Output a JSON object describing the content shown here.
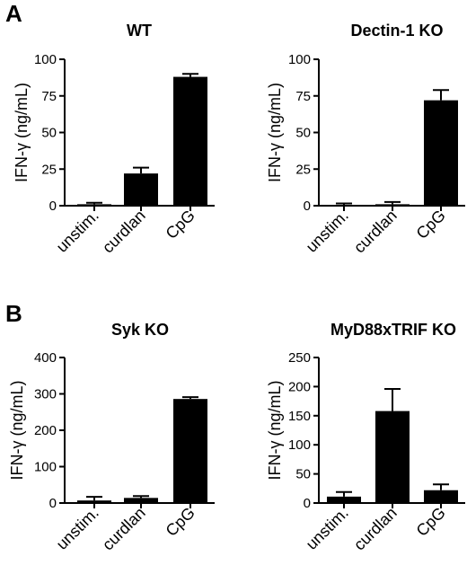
{
  "figure": {
    "panel_labels": [
      "A",
      "B"
    ]
  },
  "chart_data": [
    {
      "type": "bar",
      "title": "WT",
      "ylabel": "IFN-γ (ng/mL)",
      "categories": [
        "unstim.",
        "curdlan",
        "CpG"
      ],
      "values": [
        1,
        22,
        88
      ],
      "errors": [
        1,
        4,
        2
      ],
      "ylim": [
        0,
        100
      ],
      "yticks": [
        "0",
        "25",
        "50",
        "75",
        "100"
      ],
      "bar_color": "#000000"
    },
    {
      "type": "bar",
      "title": "Dectin-1 KO",
      "ylabel": "IFN-γ (ng/mL)",
      "categories": [
        "unstim.",
        "curdlan",
        "CpG"
      ],
      "values": [
        0.5,
        1,
        72
      ],
      "errors": [
        1,
        1.5,
        7
      ],
      "ylim": [
        0,
        100
      ],
      "yticks": [
        "0",
        "25",
        "50",
        "75",
        "100"
      ],
      "bar_color": "#000000"
    },
    {
      "type": "bar",
      "title": "Syk KO",
      "ylabel": "IFN-γ (ng/mL)",
      "categories": [
        "unstim.",
        "curdlan",
        "CpG"
      ],
      "values": [
        7,
        14,
        286
      ],
      "errors": [
        10,
        5,
        5
      ],
      "ylim": [
        0,
        400
      ],
      "yticks": [
        "0",
        "100",
        "200",
        "300",
        "400"
      ],
      "bar_color": "#000000"
    },
    {
      "type": "bar",
      "title": "MyD88xTRIF KO",
      "ylabel": "IFN-γ (ng/mL)",
      "categories": [
        "unstim.",
        "curdlan",
        "CpG"
      ],
      "values": [
        11,
        158,
        22
      ],
      "errors": [
        8,
        38,
        10
      ],
      "ylim": [
        0,
        250
      ],
      "yticks": [
        "0",
        "50",
        "100",
        "150",
        "200",
        "250"
      ],
      "bar_color": "#000000"
    }
  ]
}
